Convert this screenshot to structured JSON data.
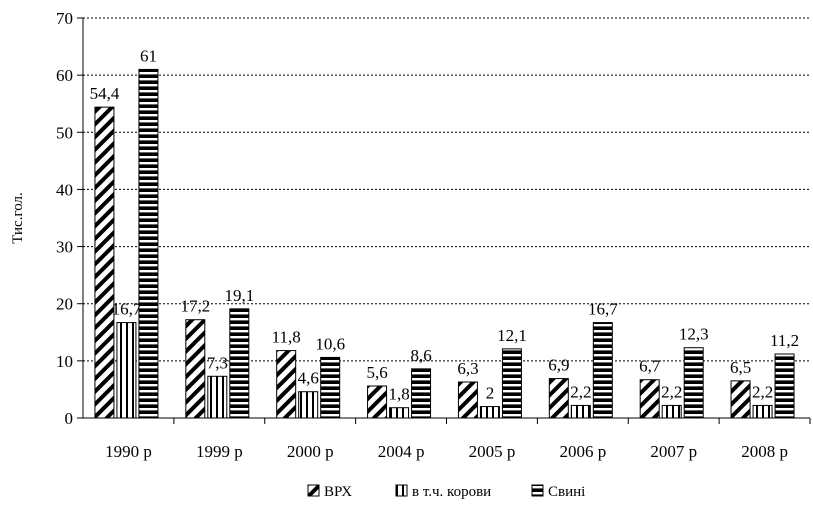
{
  "chart_data": {
    "type": "bar",
    "title": "",
    "xlabel": "",
    "ylabel": "Тис.гол.",
    "ylim": [
      0,
      70
    ],
    "y_ticks": [
      0,
      10,
      20,
      30,
      40,
      50,
      60,
      70
    ],
    "grid": "horizontal dashed",
    "legend_position": "bottom",
    "categories": [
      "1990 р",
      "1999 р",
      "2000 р",
      "2004 р",
      "2005 р",
      "2006 р",
      "2007 р",
      "2008 р"
    ],
    "series": [
      {
        "name": "ВРХ",
        "pattern": "diagonal-hatch",
        "values": [
          54.4,
          17.2,
          11.8,
          5.6,
          6.3,
          6.9,
          6.7,
          6.5
        ],
        "labels": [
          "54,4",
          "17,2",
          "11,8",
          "5,6",
          "6,3",
          "6,9",
          "6,7",
          "6,5"
        ]
      },
      {
        "name": "в т.ч. корови",
        "pattern": "vertical-stripes",
        "values": [
          16.7,
          7.3,
          4.6,
          1.8,
          2,
          2.2,
          2.2,
          2.2
        ],
        "labels": [
          "16,7",
          "7,3",
          "4,6",
          "1,8",
          "2",
          "2,2",
          "2,2",
          "2,2"
        ]
      },
      {
        "name": "Свині",
        "pattern": "horizontal-stripes",
        "values": [
          61,
          19.1,
          10.6,
          8.6,
          12.1,
          16.7,
          12.3,
          11.2
        ],
        "labels": [
          "61",
          "19,1",
          "10,6",
          "8,6",
          "12,1",
          "16,7",
          "12,3",
          "11,2"
        ]
      }
    ],
    "colors": {
      "ink": "#000000",
      "background": "#ffffff",
      "grid": "#000000"
    }
  }
}
